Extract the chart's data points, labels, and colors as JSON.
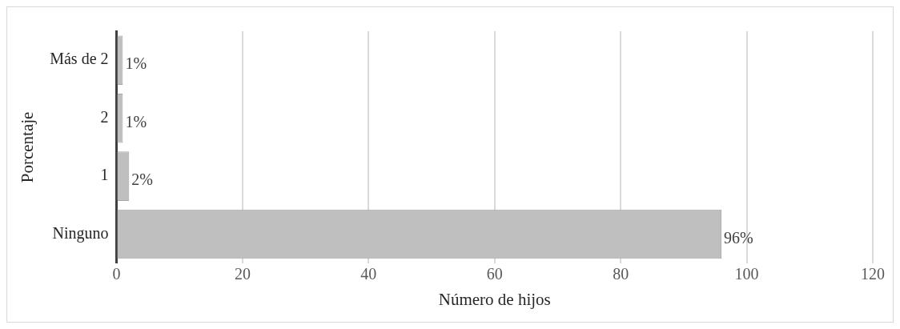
{
  "chart_data": {
    "type": "bar",
    "orientation": "horizontal",
    "xlabel": "Número de hijos",
    "ylabel": "Porcentaje",
    "categories": [
      "Más de 2",
      "2",
      "1",
      "Ninguno"
    ],
    "values": [
      1,
      1,
      2,
      96
    ],
    "value_labels": [
      "1%",
      "1%",
      "2%",
      "96%"
    ],
    "color": "#bfbfbf",
    "xlim": [
      0,
      120
    ],
    "xticks": [
      0,
      20,
      40,
      60,
      80,
      100,
      120
    ],
    "grid": "x"
  }
}
